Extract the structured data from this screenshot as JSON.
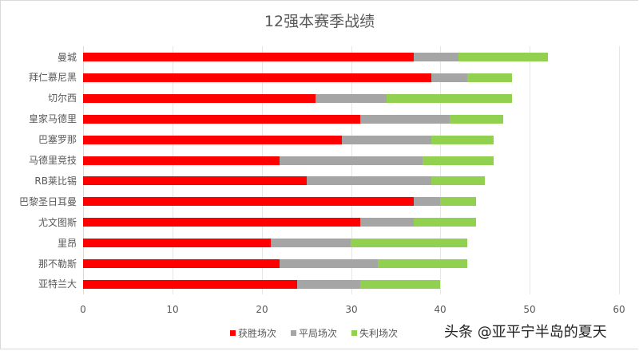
{
  "chart_data": {
    "type": "bar",
    "orientation": "horizontal",
    "stacked": true,
    "title": "12强本赛季战绩",
    "xlabel": "",
    "ylabel": "",
    "xlim": [
      0,
      60
    ],
    "x_ticks": [
      "0",
      "10",
      "20",
      "30",
      "40",
      "50",
      "60"
    ],
    "grid": true,
    "legend_position": "bottom",
    "categories": [
      "曼城",
      "拜仁慕尼黑",
      "切尔西",
      "皇家马德里",
      "巴塞罗那",
      "马德里竞技",
      "RB莱比锡",
      "巴黎圣日耳曼",
      "尤文图斯",
      "里昂",
      "那不勒斯",
      "亚特兰大"
    ],
    "series": [
      {
        "name": "获胜场次",
        "color": "#ff0000",
        "values": [
          37,
          39,
          26,
          31,
          29,
          22,
          25,
          37,
          31,
          21,
          22,
          24
        ]
      },
      {
        "name": "平局场次",
        "color": "#a5a5a5",
        "values": [
          5,
          4,
          8,
          10,
          10,
          16,
          14,
          3,
          6,
          9,
          11,
          7
        ]
      },
      {
        "name": "失利场次",
        "color": "#92d050",
        "values": [
          10,
          5,
          14,
          6,
          7,
          8,
          6,
          4,
          7,
          13,
          10,
          9
        ]
      }
    ]
  },
  "legend": {
    "items": [
      {
        "label": "获胜场次",
        "color": "#ff0000"
      },
      {
        "label": "平局场次",
        "color": "#a5a5a5"
      },
      {
        "label": "失利场次",
        "color": "#92d050"
      }
    ]
  },
  "watermark": "头条 @亚平宁半岛的夏天"
}
